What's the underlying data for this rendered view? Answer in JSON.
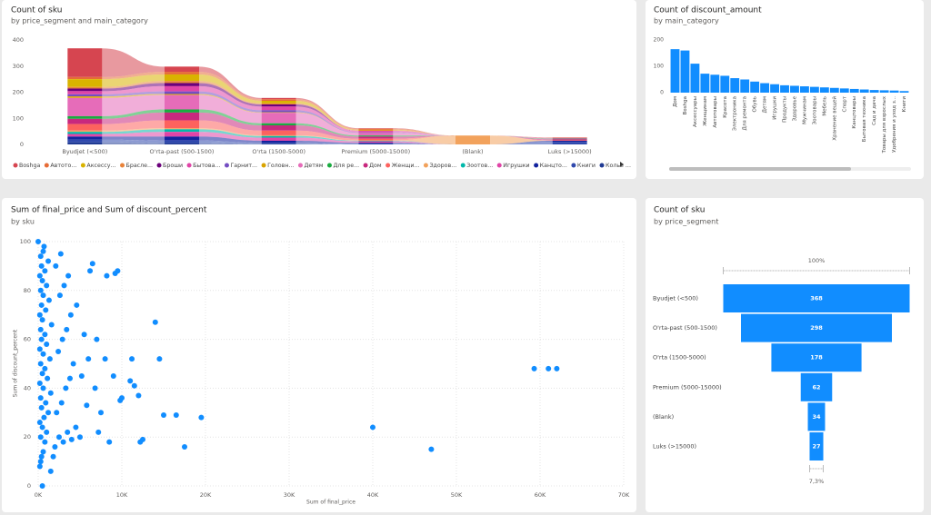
{
  "chart_data": [
    {
      "type": "ribbon",
      "title": "Count of sku",
      "subtitle": "by price_segment and main_category",
      "categories": [
        "Byudjet (<500)",
        "O'rta-past (500-1500)",
        "O'rta (1500-5000)",
        "Premium (5000-15000)",
        "(Blank)",
        "Luks (>15000)"
      ],
      "ylim": [
        0,
        400
      ],
      "yticks": [
        0,
        100,
        200,
        300,
        400
      ],
      "series": [
        {
          "name": "Boshga",
          "color": "#d64550",
          "values": [
            110,
            20,
            5,
            2,
            0,
            0
          ]
        },
        {
          "name": "Автото...",
          "color": "#e66c37",
          "values": [
            8,
            10,
            6,
            4,
            0,
            2
          ]
        },
        {
          "name": "Аксессу...",
          "color": "#d9b300",
          "values": [
            30,
            25,
            10,
            2,
            0,
            0
          ]
        },
        {
          "name": "Брасле...",
          "color": "#e8833a",
          "values": [
            6,
            8,
            4,
            2,
            0,
            0
          ]
        },
        {
          "name": "Броши",
          "color": "#6b007b",
          "values": [
            10,
            12,
            8,
            0,
            0,
            0
          ]
        },
        {
          "name": "Бытова...",
          "color": "#e044a7",
          "values": [
            12,
            20,
            14,
            6,
            0,
            3
          ]
        },
        {
          "name": "Гарнит...",
          "color": "#744ec2",
          "values": [
            8,
            10,
            8,
            2,
            0,
            0
          ]
        },
        {
          "name": "Головн...",
          "color": "#d9a300",
          "values": [
            6,
            4,
            2,
            0,
            0,
            0
          ]
        },
        {
          "name": "Детям",
          "color": "#e66cb9",
          "values": [
            70,
            55,
            40,
            10,
            0,
            0
          ]
        },
        {
          "name": "Для ре...",
          "color": "#1aab40",
          "values": [
            10,
            12,
            8,
            4,
            0,
            2
          ]
        },
        {
          "name": "Дом",
          "color": "#c8287e",
          "values": [
            20,
            30,
            20,
            8,
            0,
            4
          ]
        },
        {
          "name": "Женщи...",
          "color": "#fd625e",
          "values": [
            25,
            30,
            18,
            6,
            0,
            2
          ]
        },
        {
          "name": "Здоров...",
          "color": "#f2a25c",
          "values": [
            5,
            4,
            3,
            2,
            34,
            0
          ]
        },
        {
          "name": "Зоотов...",
          "color": "#01b8aa",
          "values": [
            8,
            10,
            6,
            2,
            0,
            0
          ]
        },
        {
          "name": "Игрушки",
          "color": "#e044a7",
          "values": [
            10,
            18,
            12,
            6,
            0,
            0
          ]
        },
        {
          "name": "Канцто...",
          "color": "#12239e",
          "values": [
            12,
            15,
            8,
            4,
            0,
            4
          ]
        },
        {
          "name": "Книги",
          "color": "#3049ad",
          "values": [
            10,
            10,
            4,
            2,
            0,
            10
          ]
        },
        {
          "name": "Колье ...",
          "color": "#1f3a93",
          "values": [
            8,
            5,
            2,
            0,
            0,
            0
          ]
        }
      ]
    },
    {
      "type": "bar",
      "title": "Count of discount_amount",
      "subtitle": "by main_category",
      "color": "#118dff",
      "categories": [
        "Дом",
        "Boshga",
        "Аксессуары",
        "Женщинам",
        "Автотовары",
        "Красота",
        "Электроника",
        "Для ремонта",
        "Обувь",
        "Детям",
        "Игрушки",
        "Продукты",
        "Здоровье",
        "Мужчинам",
        "Зоотовары",
        "Мебель",
        "Хранение вещей",
        "Спорт",
        "Канцтовары",
        "Бытовая техника",
        "Сад и дача",
        "Товары для взрослых",
        "Удобрения и уход з...",
        "Книги"
      ],
      "values": [
        165,
        160,
        110,
        72,
        68,
        64,
        55,
        50,
        42,
        36,
        32,
        28,
        26,
        24,
        22,
        20,
        18,
        16,
        14,
        12,
        10,
        9,
        8,
        6
      ],
      "ylim": [
        0,
        200
      ],
      "yticks": [
        0,
        100,
        200
      ]
    },
    {
      "type": "scatter",
      "title": "Sum of final_price and Sum of discount_percent",
      "subtitle": "by sku",
      "color": "#118dff",
      "x_label": "Sum of final_price",
      "y_label": "Sum of discount_percent",
      "grid": true,
      "xlim": [
        0,
        70000
      ],
      "xticks": [
        {
          "value": 0,
          "label": "0K"
        },
        {
          "value": 10000,
          "label": "10K"
        },
        {
          "value": 20000,
          "label": "20K"
        },
        {
          "value": 30000,
          "label": "30K"
        },
        {
          "value": 40000,
          "label": "40K"
        },
        {
          "value": 50000,
          "label": "50K"
        },
        {
          "value": 60000,
          "label": "60K"
        },
        {
          "value": 70000,
          "label": "70K"
        }
      ],
      "ylim": [
        0,
        100
      ],
      "yticks": [
        0,
        20,
        40,
        60,
        80,
        100
      ],
      "x": [
        0,
        500,
        200,
        300,
        400,
        600,
        800,
        300,
        1000,
        500,
        200,
        700,
        1200,
        400,
        900,
        300,
        1500,
        600,
        200,
        1100,
        500,
        800,
        300,
        1400,
        600,
        200,
        1000,
        400,
        800,
        300,
        1600,
        500,
        200,
        900,
        400,
        1300,
        600,
        300,
        1000,
        500,
        200,
        800,
        400,
        1200,
        300,
        600,
        2000,
        2500,
        3000,
        3500,
        4000,
        4500,
        5000,
        2200,
        2800,
        3300,
        3800,
        4200,
        5200,
        2400,
        2900,
        3400,
        3900,
        4600,
        5500,
        2600,
        3100,
        3600,
        2100,
        2700,
        6000,
        6500,
        6200,
        7000,
        7500,
        8000,
        8200,
        8500,
        9000,
        9200,
        9500,
        9800,
        10000,
        6800,
        7200,
        5800,
        11000,
        11200,
        11500,
        12000,
        12200,
        12500,
        14000,
        14500,
        15000,
        16500,
        17500,
        19500,
        40000,
        47000,
        59300,
        61000,
        62000,
        1800,
        1500,
        700
      ],
      "values": [
        100,
        0,
        8,
        10,
        12,
        14,
        18,
        20,
        22,
        24,
        26,
        28,
        30,
        32,
        34,
        36,
        38,
        40,
        42,
        44,
        46,
        48,
        50,
        52,
        54,
        56,
        58,
        60,
        62,
        64,
        66,
        68,
        70,
        72,
        74,
        76,
        78,
        80,
        82,
        84,
        86,
        88,
        90,
        92,
        94,
        96,
        16,
        20,
        18,
        22,
        19,
        24,
        20,
        30,
        34,
        40,
        44,
        50,
        45,
        55,
        60,
        64,
        70,
        74,
        62,
        78,
        82,
        86,
        90,
        95,
        52,
        91,
        88,
        60,
        30,
        52,
        86,
        18,
        45,
        87,
        88,
        35,
        36,
        40,
        22,
        33,
        43,
        52,
        41,
        37,
        18,
        19,
        67,
        52,
        29,
        29,
        16,
        28,
        24,
        15,
        48,
        48,
        48,
        12,
        6,
        98
      ]
    },
    {
      "type": "funnel",
      "title": "Count of sku",
      "subtitle": "by price_segment",
      "color": "#118dff",
      "categories": [
        "Byudjet (<500)",
        "O'rta-past (500-1500)",
        "O'rta (1500-5000)",
        "Premium (5000-15000)",
        "(Blank)",
        "Luks (>15000)"
      ],
      "values": [
        368,
        298,
        178,
        62,
        34,
        27
      ],
      "first_percent": {
        "value": 100,
        "label": "100%"
      },
      "last_percent": {
        "value": 7.3,
        "label": "7,3%"
      }
    }
  ]
}
